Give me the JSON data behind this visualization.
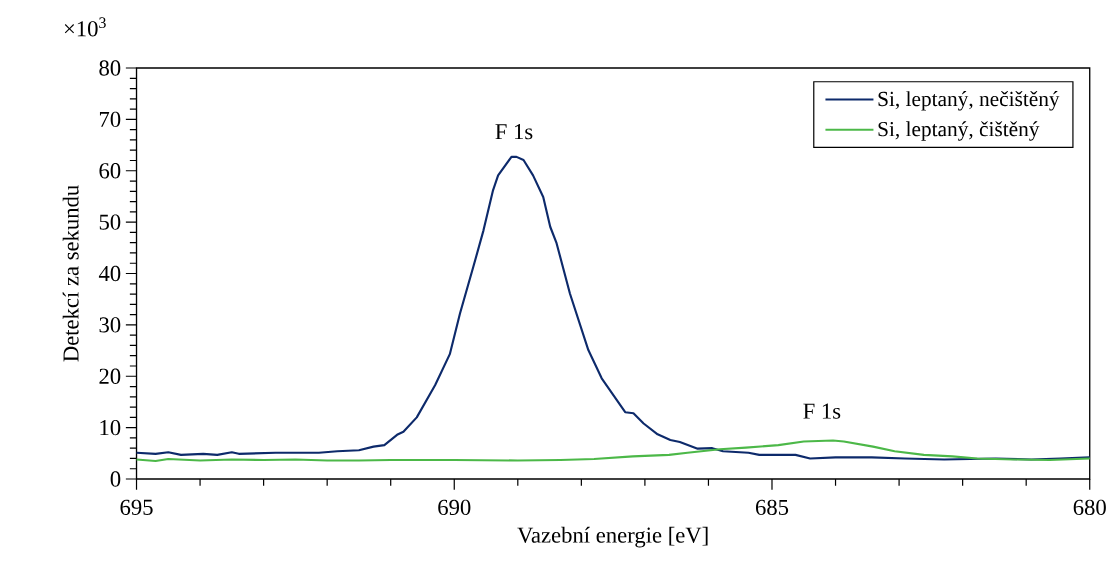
{
  "chart_data": {
    "type": "line",
    "xlabel": "Vazební energie [eV]",
    "ylabel": "Detekcí za sekundu",
    "annotations": [
      "×10$^{3}$",
      "F 1s",
      "F 1s"
    ],
    "xlim": [
      695,
      680
    ],
    "ylim": [
      0,
      80
    ],
    "xticks": [
      695,
      690,
      685,
      680
    ],
    "yticks": [
      0,
      10,
      20,
      30,
      40,
      50,
      60,
      70,
      80
    ],
    "legend": "top right",
    "series": [
      {
        "name": "Si, leptaný, nečištěný",
        "color": "#0d2a6b",
        "x": [
          695.0,
          694.7,
          694.5,
          694.3,
          693.95,
          693.73,
          693.5,
          693.39,
          692.81,
          692.13,
          691.84,
          691.5,
          691.27,
          691.1,
          690.9,
          690.8,
          690.59,
          690.3,
          690.07,
          689.91,
          689.7,
          689.54,
          689.39,
          689.31,
          689.1,
          689.02,
          688.91,
          688.76,
          688.6,
          688.49,
          688.39,
          688.18,
          687.89,
          687.68,
          687.31,
          687.18,
          687.02,
          686.8,
          686.6,
          686.45,
          686.17,
          685.94,
          685.77,
          685.37,
          685.2,
          684.91,
          684.63,
          684.4,
          684.0,
          683.43,
          682.91,
          682.29,
          681.48,
          680.92,
          680.46,
          680.0
        ],
        "values": [
          5.1,
          4.9,
          5.2,
          4.7,
          4.9,
          4.7,
          5.2,
          4.9,
          5.1,
          5.1,
          5.4,
          5.6,
          6.3,
          6.6,
          8.6,
          9.2,
          12.0,
          18.3,
          24.3,
          32.2,
          41.3,
          48.4,
          56.2,
          59.1,
          62.7,
          62.7,
          62.1,
          59.1,
          54.9,
          49.1,
          45.9,
          36.1,
          25.1,
          19.6,
          13.0,
          12.8,
          10.8,
          8.7,
          7.6,
          7.2,
          5.9,
          6.0,
          5.4,
          5.1,
          4.7,
          4.7,
          4.7,
          4.0,
          4.2,
          4.2,
          4.0,
          3.8,
          4.0,
          3.8,
          4.0,
          4.2
        ]
      },
      {
        "name": "Si, leptaný, čištěný",
        "color": "#4cb848",
        "x": [
          695.0,
          694.7,
          694.5,
          694.0,
          693.5,
          693.0,
          692.5,
          692.0,
          691.5,
          691.0,
          690.0,
          689.0,
          688.33,
          687.8,
          687.19,
          686.62,
          686.33,
          685.82,
          685.41,
          684.9,
          684.5,
          684.04,
          683.87,
          683.41,
          683.07,
          682.61,
          682.16,
          681.77,
          681.2,
          680.63,
          680.0
        ],
        "values": [
          3.8,
          3.5,
          3.9,
          3.6,
          3.8,
          3.7,
          3.8,
          3.6,
          3.6,
          3.7,
          3.7,
          3.6,
          3.7,
          3.9,
          4.4,
          4.7,
          5.1,
          5.8,
          6.1,
          6.6,
          7.3,
          7.5,
          7.3,
          6.3,
          5.4,
          4.7,
          4.4,
          4.0,
          3.8,
          3.7,
          4.0
        ]
      }
    ]
  }
}
